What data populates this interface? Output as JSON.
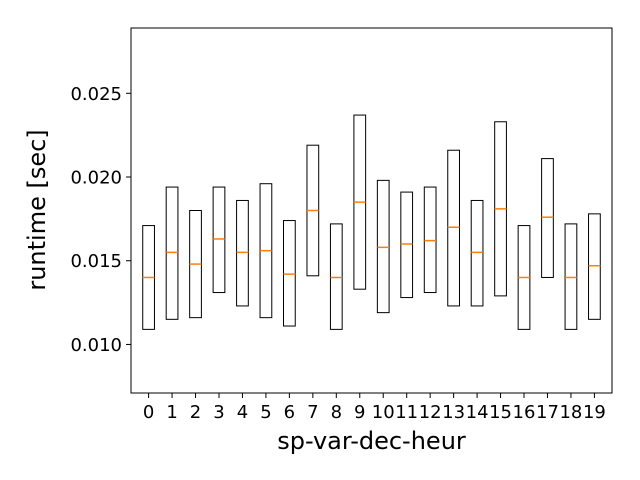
{
  "chart_data": {
    "type": "box",
    "xlabel": "sp-var-dec-heur",
    "ylabel": "runtime [sec]",
    "ylim": [
      0.0071,
      0.0289
    ],
    "yticks": [
      0.01,
      0.015,
      0.02,
      0.025
    ],
    "ytick_labels": [
      "0.010",
      "0.015",
      "0.020",
      "0.025"
    ],
    "highlighted_category": "8",
    "highlight_color": "#ff0000",
    "box_edge_color": "#000000",
    "median_color": "#ff7f0e",
    "grid": false,
    "categories": [
      "0",
      "1",
      "2",
      "3",
      "4",
      "5",
      "6",
      "7",
      "8",
      "9",
      "10",
      "11",
      "12",
      "13",
      "14",
      "15",
      "16",
      "17",
      "18",
      "19"
    ],
    "boxes": [
      {
        "q1": 0.0109,
        "median": 0.014,
        "q3": 0.0171
      },
      {
        "q1": 0.0115,
        "median": 0.0155,
        "q3": 0.0194
      },
      {
        "q1": 0.0116,
        "median": 0.0148,
        "q3": 0.018
      },
      {
        "q1": 0.0131,
        "median": 0.0163,
        "q3": 0.0194
      },
      {
        "q1": 0.0123,
        "median": 0.0155,
        "q3": 0.0186
      },
      {
        "q1": 0.0116,
        "median": 0.0156,
        "q3": 0.0196
      },
      {
        "q1": 0.0111,
        "median": 0.0142,
        "q3": 0.0174
      },
      {
        "q1": 0.0141,
        "median": 0.018,
        "q3": 0.0219
      },
      {
        "q1": 0.0109,
        "median": 0.014,
        "q3": 0.0172
      },
      {
        "q1": 0.0133,
        "median": 0.0185,
        "q3": 0.0237
      },
      {
        "q1": 0.0119,
        "median": 0.0158,
        "q3": 0.0198
      },
      {
        "q1": 0.0128,
        "median": 0.016,
        "q3": 0.0191
      },
      {
        "q1": 0.0131,
        "median": 0.0162,
        "q3": 0.0194
      },
      {
        "q1": 0.0123,
        "median": 0.017,
        "q3": 0.0216
      },
      {
        "q1": 0.0123,
        "median": 0.0155,
        "q3": 0.0186
      },
      {
        "q1": 0.0129,
        "median": 0.0181,
        "q3": 0.0233
      },
      {
        "q1": 0.0109,
        "median": 0.014,
        "q3": 0.0171
      },
      {
        "q1": 0.014,
        "median": 0.0176,
        "q3": 0.0211
      },
      {
        "q1": 0.0109,
        "median": 0.014,
        "q3": 0.0172
      },
      {
        "q1": 0.0115,
        "median": 0.0147,
        "q3": 0.0178
      }
    ]
  }
}
